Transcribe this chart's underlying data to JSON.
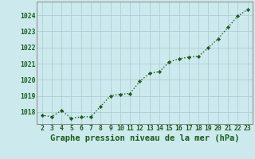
{
  "x": [
    2,
    3,
    4,
    5,
    6,
    7,
    8,
    9,
    10,
    11,
    12,
    13,
    14,
    15,
    16,
    17,
    18,
    19,
    20,
    21,
    22,
    23
  ],
  "y": [
    1017.8,
    1017.7,
    1018.1,
    1017.6,
    1017.7,
    1017.7,
    1018.35,
    1019.0,
    1019.1,
    1019.15,
    1019.9,
    1020.4,
    1020.5,
    1021.1,
    1021.3,
    1021.4,
    1021.45,
    1022.0,
    1022.55,
    1023.25,
    1023.95,
    1024.35
  ],
  "line_color": "#1a5c1a",
  "marker": "D",
  "marker_size": 2.2,
  "bg_color": "#cce9ed",
  "grid_color": "#b0cfd4",
  "xlabel": "Graphe pression niveau de la mer (hPa)",
  "xlabel_color": "#1a5c1a",
  "xlabel_fontsize": 7.5,
  "ytick_labels": [
    1018,
    1019,
    1020,
    1021,
    1022,
    1023,
    1024
  ],
  "ylim": [
    1017.25,
    1024.85
  ],
  "xlim": [
    1.5,
    23.5
  ],
  "xtick_labels": [
    2,
    3,
    4,
    5,
    6,
    7,
    8,
    9,
    10,
    11,
    12,
    13,
    14,
    15,
    16,
    17,
    18,
    19,
    20,
    21,
    22,
    23
  ],
  "tick_color": "#1a5c1a",
  "tick_fontsize": 5.8,
  "spine_color": "#888888",
  "line_width": 1.0,
  "line_style": "dotted"
}
